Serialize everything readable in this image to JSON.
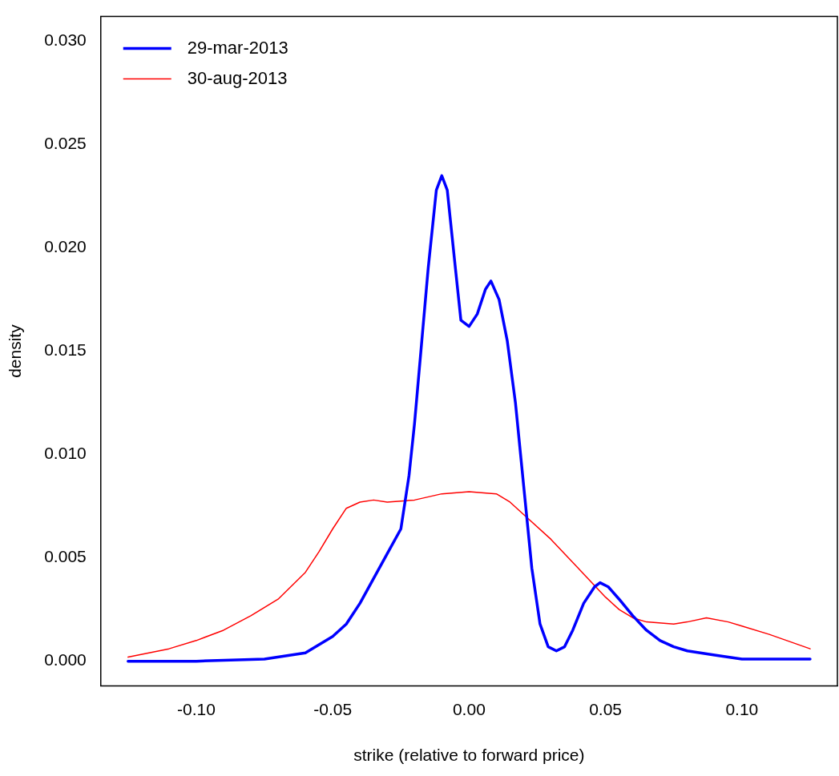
{
  "chart_data": {
    "type": "line",
    "xlabel": "strike (relative to forward price)",
    "ylabel": "density",
    "xlim": [
      -0.135,
      0.135
    ],
    "xticks": [
      {
        "value": -0.1,
        "label": "-0.10"
      },
      {
        "value": -0.05,
        "label": "-0.05"
      },
      {
        "value": 0,
        "label": "0.00"
      },
      {
        "value": 0.05,
        "label": "0.05"
      },
      {
        "value": 0.1,
        "label": "0.10"
      }
    ],
    "ylim": [
      -0.0012,
      0.0312
    ],
    "yticks": [
      {
        "value": 0,
        "label": "0.000"
      },
      {
        "value": 0.005,
        "label": "0.005"
      },
      {
        "value": 0.01,
        "label": "0.010"
      },
      {
        "value": 0.015,
        "label": "0.015"
      },
      {
        "value": 0.02,
        "label": "0.020"
      },
      {
        "value": 0.025,
        "label": "0.025"
      },
      {
        "value": 0.03,
        "label": "0.030"
      }
    ],
    "grid": false,
    "legend": "top left",
    "marker": "none",
    "line_style": "solid",
    "series": [
      {
        "name": "29-mar-2013",
        "color": "#0000ff",
        "x": [
          -0.125,
          -0.1,
          -0.075,
          -0.06,
          -0.05,
          -0.045,
          -0.04,
          -0.035,
          -0.03,
          -0.025,
          -0.022,
          -0.02,
          -0.017,
          -0.015,
          -0.012,
          -0.01,
          -0.008,
          -0.005,
          -0.003,
          0,
          0.003,
          0.006,
          0.008,
          0.011,
          0.014,
          0.017,
          0.02,
          0.023,
          0.026,
          0.029,
          0.032,
          0.035,
          0.038,
          0.042,
          0.046,
          0.048,
          0.051,
          0.055,
          0.06,
          0.065,
          0.07,
          0.075,
          0.08,
          0.09,
          0.1,
          0.11,
          0.125
        ],
        "values": [
          0,
          0,
          0.0001,
          0.0004,
          0.0012,
          0.0018,
          0.0028,
          0.004,
          0.0052,
          0.0064,
          0.009,
          0.0115,
          0.016,
          0.019,
          0.0228,
          0.0235,
          0.0228,
          0.019,
          0.0165,
          0.0162,
          0.0168,
          0.018,
          0.0184,
          0.0175,
          0.0155,
          0.0125,
          0.0085,
          0.0045,
          0.0018,
          0.0007,
          0.0005,
          0.0007,
          0.0015,
          0.0028,
          0.0036,
          0.0038,
          0.0036,
          0.003,
          0.0022,
          0.0015,
          0.001,
          0.0007,
          0.0005,
          0.0003,
          0.0001,
          0.0001,
          0.0001
        ]
      },
      {
        "name": "30-aug-2013",
        "color": "#ff0000",
        "x": [
          -0.125,
          -0.11,
          -0.1,
          -0.09,
          -0.08,
          -0.07,
          -0.06,
          -0.055,
          -0.05,
          -0.045,
          -0.04,
          -0.035,
          -0.03,
          -0.02,
          -0.01,
          0,
          0.01,
          0.015,
          0.02,
          0.03,
          0.04,
          0.05,
          0.055,
          0.06,
          0.065,
          0.075,
          0.08,
          0.087,
          0.095,
          0.1,
          0.11,
          0.125
        ],
        "values": [
          0.0002,
          0.0006,
          0.001,
          0.0015,
          0.0022,
          0.003,
          0.0043,
          0.0053,
          0.0064,
          0.0074,
          0.0077,
          0.0078,
          0.0077,
          0.0078,
          0.0081,
          0.0082,
          0.0081,
          0.0077,
          0.0071,
          0.0059,
          0.0045,
          0.0031,
          0.0025,
          0.0021,
          0.0019,
          0.0018,
          0.0019,
          0.0021,
          0.0019,
          0.0017,
          0.0013,
          0.0006
        ]
      }
    ]
  }
}
